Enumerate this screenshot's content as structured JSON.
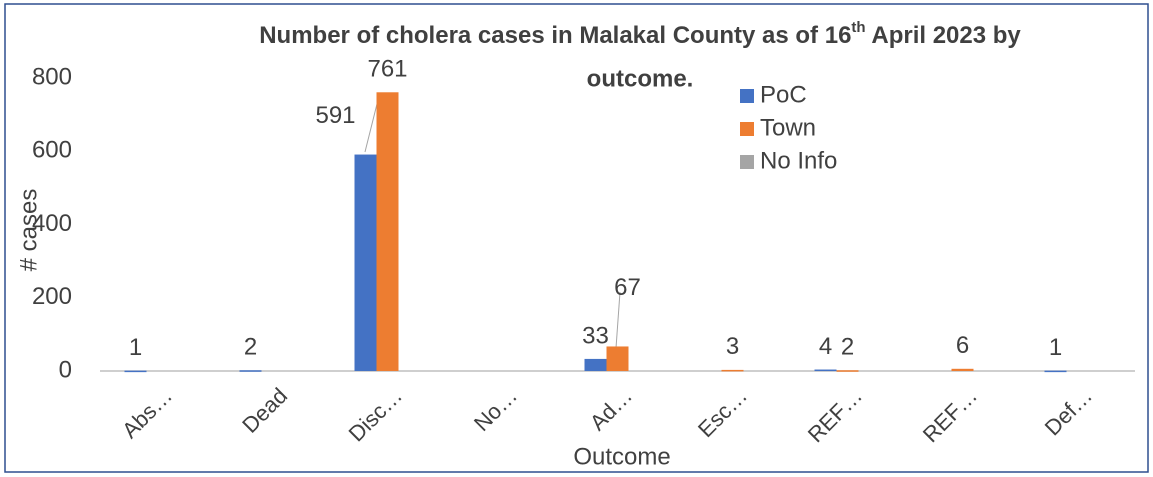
{
  "chart_data": {
    "type": "bar",
    "title": [
      "Number of cholera cases in Malakal County as of 16",
      "th",
      " April  2023 by",
      "outcome."
    ],
    "x_label": "Outcome",
    "y_label": "# cases",
    "categories": [
      "Abs…",
      "Dead",
      "Disc…",
      "No…",
      "Ad…",
      "Esc…",
      "REF…",
      "REF…",
      "Def…"
    ],
    "series": [
      {
        "name": "PoC",
        "color": "#4472c4",
        "values": [
          1,
          2,
          591,
          null,
          33,
          null,
          4,
          null,
          1
        ]
      },
      {
        "name": "Town",
        "color": "#ed7d31",
        "values": [
          null,
          null,
          761,
          null,
          67,
          3,
          2,
          6,
          null
        ]
      },
      {
        "name": "No Info",
        "color": "#a5a5a5",
        "values": [
          null,
          null,
          null,
          null,
          null,
          null,
          null,
          null,
          null
        ]
      }
    ],
    "ylim": [
      0,
      800
    ],
    "yticks": [
      0,
      200,
      400,
      600,
      800
    ],
    "grid": false,
    "legend": "top-right"
  }
}
